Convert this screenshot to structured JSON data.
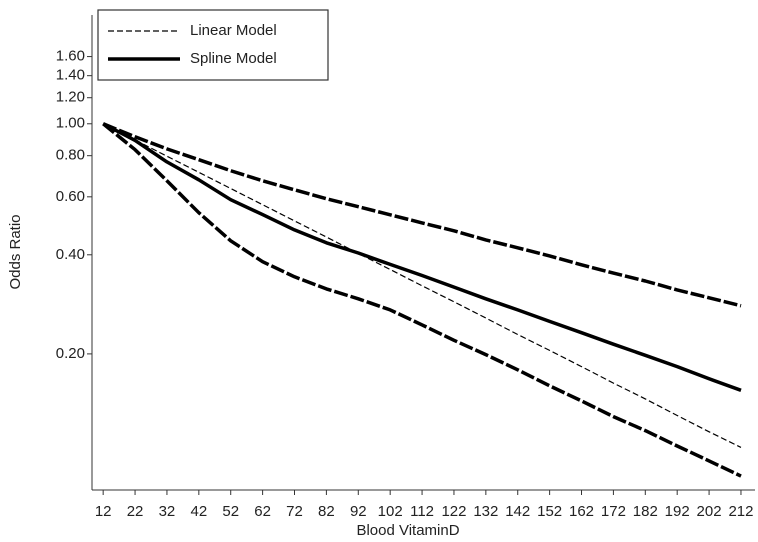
{
  "chart_data": {
    "type": "line",
    "xlabel": "Blood VitaminD",
    "ylabel": "Odds Ratio",
    "x": [
      12,
      22,
      32,
      42,
      52,
      62,
      72,
      82,
      92,
      102,
      112,
      122,
      132,
      142,
      152,
      162,
      172,
      182,
      192,
      202,
      212
    ],
    "xlim": [
      8.5,
      216.4
    ],
    "xticks": [
      12,
      22,
      32,
      42,
      52,
      62,
      72,
      82,
      92,
      102,
      112,
      122,
      132,
      142,
      152,
      162,
      172,
      182,
      192,
      202,
      212
    ],
    "ylim": [
      0.0772,
      2.14
    ],
    "yscale": "log",
    "yticks": [
      {
        "value": 0.2,
        "label": "0.20"
      },
      {
        "value": 0.4,
        "label": "0.40"
      },
      {
        "value": 0.6,
        "label": "0.60"
      },
      {
        "value": 0.8,
        "label": "0.80"
      },
      {
        "value": 1.0,
        "label": "1.00"
      },
      {
        "value": 1.2,
        "label": "1.20"
      },
      {
        "value": 1.4,
        "label": "1.40"
      },
      {
        "value": 1.6,
        "label": "1.60"
      }
    ],
    "legend": "upper left",
    "series": [
      {
        "name": "Linear Model",
        "color": "#000000",
        "style": "dashed-thin",
        "values": [
          1.0,
          0.893,
          0.797,
          0.712,
          0.636,
          0.568,
          0.507,
          0.453,
          0.404,
          0.361,
          0.322,
          0.288,
          0.257,
          0.229,
          0.205,
          0.183,
          0.163,
          0.146,
          0.13,
          0.116,
          0.104
        ]
      },
      {
        "name": "Spline Model",
        "color": "#000000",
        "style": "solid-thick",
        "values": [
          1.0,
          0.89,
          0.766,
          0.676,
          0.588,
          0.53,
          0.476,
          0.435,
          0.405,
          0.374,
          0.346,
          0.319,
          0.294,
          0.272,
          0.251,
          0.232,
          0.214,
          0.198,
          0.183,
          0.168,
          0.155
        ]
      },
      {
        "color": "#000000",
        "style": "dashed-thick",
        "values": [
          1.0,
          0.913,
          0.839,
          0.778,
          0.72,
          0.671,
          0.63,
          0.592,
          0.56,
          0.529,
          0.5,
          0.473,
          0.444,
          0.42,
          0.397,
          0.373,
          0.352,
          0.333,
          0.313,
          0.296,
          0.28
        ]
      },
      {
        "color": "#000000",
        "style": "dashed-thick",
        "values": [
          1.0,
          0.834,
          0.671,
          0.537,
          0.441,
          0.381,
          0.343,
          0.315,
          0.294,
          0.272,
          0.245,
          0.22,
          0.199,
          0.179,
          0.16,
          0.144,
          0.129,
          0.117,
          0.105,
          0.0946,
          0.0851
        ]
      }
    ]
  }
}
